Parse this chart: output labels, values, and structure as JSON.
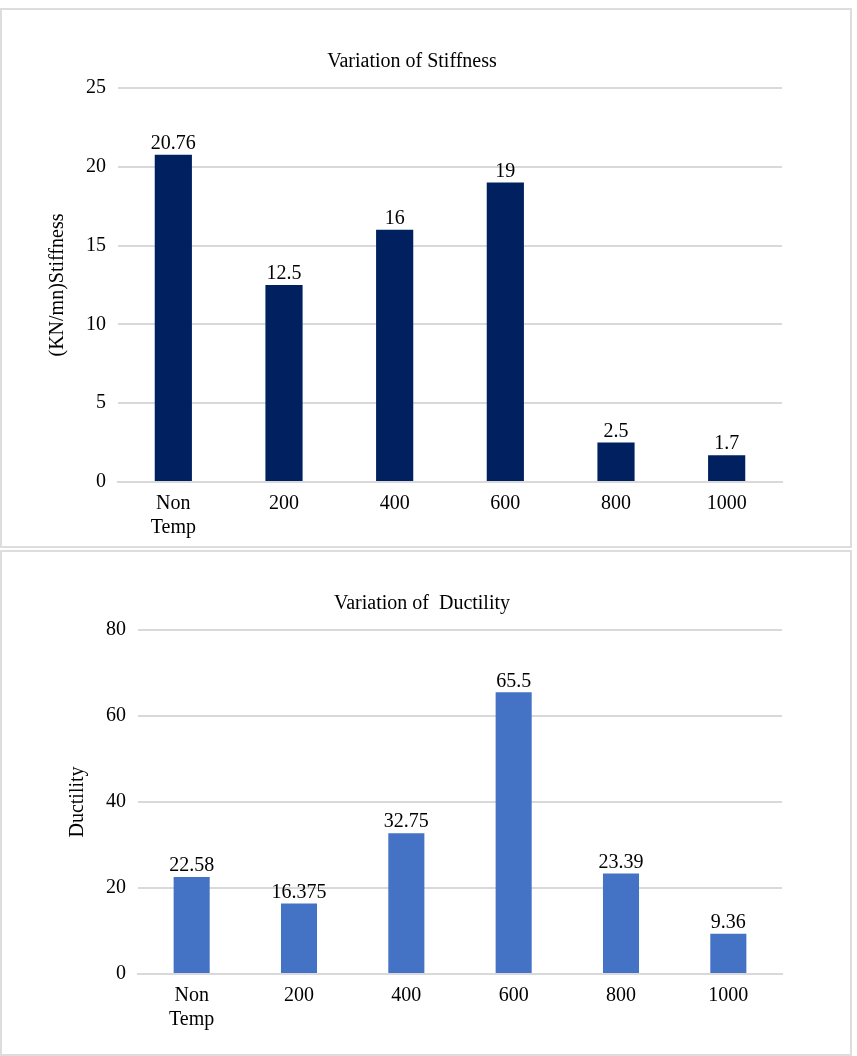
{
  "chart_data": [
    {
      "type": "bar",
      "title": "Variation of Stiffness",
      "ylabel": "(KN/mn)Stiffness",
      "categories": [
        "Non Temp",
        "200",
        "400",
        "600",
        "800",
        "1000"
      ],
      "values": [
        20.76,
        12.5,
        16,
        19,
        2.5,
        1.7
      ],
      "color": "#002060",
      "ylim": [
        0,
        25
      ],
      "yticks": [
        0,
        5,
        10,
        15,
        20,
        25
      ],
      "grid": "y",
      "data_labels": true
    },
    {
      "type": "bar",
      "title": "Variation of  Ductility",
      "ylabel": "Ductility",
      "categories": [
        "Non Temp",
        "200",
        "400",
        "600",
        "800",
        "1000"
      ],
      "values": [
        22.58,
        16.375,
        32.75,
        65.5,
        23.39,
        9.36
      ],
      "color": "#4472c4",
      "ylim": [
        0,
        80
      ],
      "yticks": [
        0,
        20,
        40,
        60,
        80
      ],
      "grid": "y",
      "data_labels": true
    }
  ]
}
